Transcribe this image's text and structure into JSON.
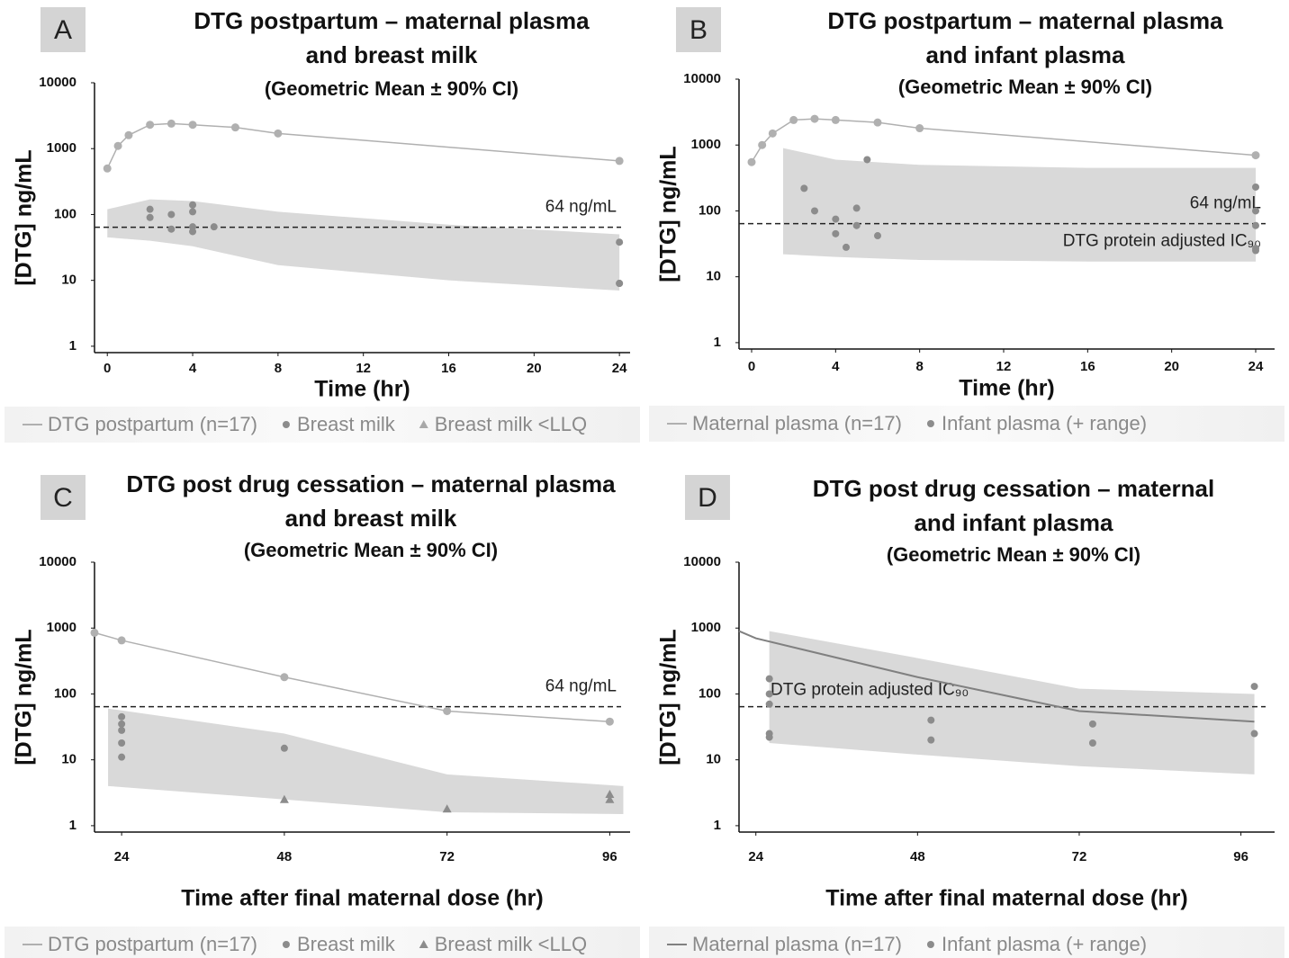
{
  "chart_data": [
    {
      "type": "line",
      "panel": "A",
      "title": [
        "DTG postpartum – maternal plasma",
        "and breast milk"
      ],
      "subtitle": "(Geometric Mean ± 90% CI)",
      "xlabel": "Time (hr)",
      "ylabel": "[DTG] ng/mL",
      "log_scale": true,
      "xlim": [
        -0.6,
        24.5
      ],
      "xticks": [
        0,
        4,
        8,
        12,
        16,
        20,
        24
      ],
      "ylim": [
        0.8,
        10000
      ],
      "yticks": [
        1,
        10,
        100,
        1000,
        10000
      ],
      "reference_line": {
        "value": 64,
        "labels": [
          "64 ng/mL"
        ]
      },
      "band": {
        "color": "#d9d9d9",
        "x": [
          0,
          2,
          4,
          8,
          16,
          24
        ],
        "lower": [
          45,
          40,
          33,
          17,
          10,
          7
        ],
        "upper": [
          120,
          170,
          160,
          110,
          70,
          50
        ]
      },
      "series": [
        {
          "name": "DTG postpartum (n=17)",
          "color": "#b0b0b0",
          "marker": "circle",
          "x": [
            0,
            0.5,
            1,
            2,
            3,
            4,
            6,
            8,
            24
          ],
          "values": [
            500,
            1100,
            1600,
            2300,
            2400,
            2300,
            2100,
            1700,
            650
          ]
        },
        {
          "name": "Breast milk",
          "color": "#8c8c8c",
          "marker": "dot",
          "x": [
            2,
            2,
            3,
            3,
            4,
            4,
            4,
            4,
            5,
            24,
            24,
            24
          ],
          "values": [
            90,
            120,
            60,
            100,
            140,
            110,
            65,
            55,
            65,
            38,
            9,
            9
          ]
        },
        {
          "name": "Breast milk <LLQ",
          "color": "#a8a8a8",
          "marker": "triangle",
          "x": [],
          "values": []
        }
      ]
    },
    {
      "type": "line",
      "panel": "B",
      "title": [
        "DTG postpartum – maternal plasma",
        "and infant plasma"
      ],
      "subtitle": "(Geometric Mean ± 90% CI)",
      "xlabel": "Time (hr)",
      "ylabel": "[DTG] ng/mL",
      "log_scale": true,
      "xlim": [
        -0.6,
        24.9
      ],
      "xticks": [
        0,
        4,
        8,
        12,
        16,
        20,
        24
      ],
      "ylim": [
        0.8,
        10000
      ],
      "yticks": [
        1,
        10,
        100,
        1000,
        10000
      ],
      "reference_line": {
        "value": 64,
        "labels": [
          "64 ng/mL",
          "DTG protein adjusted IC₉₀"
        ]
      },
      "band": {
        "color": "#d9d9d9",
        "x": [
          1.5,
          4,
          8,
          16,
          24
        ],
        "lower": [
          22,
          20,
          18,
          17,
          17
        ],
        "upper": [
          900,
          600,
          500,
          450,
          450
        ]
      },
      "series": [
        {
          "name": "Maternal plasma (n=17)",
          "color": "#b0b0b0",
          "marker": "circle",
          "x": [
            0,
            0.5,
            1,
            2,
            3,
            4,
            6,
            8,
            24
          ],
          "values": [
            550,
            1000,
            1500,
            2400,
            2500,
            2400,
            2200,
            1800,
            700
          ]
        },
        {
          "name": "Infant plasma (+ range)",
          "color": "#8c8c8c",
          "marker": "dot",
          "x": [
            2.5,
            3,
            4,
            4,
            4.5,
            5,
            5,
            5.5,
            6,
            24,
            24,
            24,
            24,
            24
          ],
          "values": [
            220,
            100,
            75,
            45,
            28,
            60,
            110,
            600,
            42,
            230,
            100,
            60,
            25,
            27
          ]
        }
      ]
    },
    {
      "type": "line",
      "panel": "C",
      "title": [
        "DTG post drug cessation – maternal plasma",
        "and breast milk"
      ],
      "subtitle": "(Geometric Mean ± 90% CI)",
      "xlabel": "Time after final maternal dose (hr)",
      "ylabel": "[DTG] ng/mL",
      "log_scale": true,
      "xlim": [
        20,
        99
      ],
      "xticks": [
        24,
        48,
        72,
        96
      ],
      "ylim": [
        0.8,
        10000
      ],
      "yticks": [
        1,
        10,
        100,
        1000,
        10000
      ],
      "reference_line": {
        "value": 64,
        "labels": [
          "64 ng/mL"
        ]
      },
      "band": {
        "color": "#d9d9d9",
        "x": [
          22,
          48,
          72,
          98
        ],
        "lower": [
          4,
          2.5,
          1.6,
          1.5
        ],
        "upper": [
          60,
          25,
          6,
          4
        ]
      },
      "series": [
        {
          "name": "DTG postpartum (n=17)",
          "color": "#b0b0b0",
          "marker": "circle",
          "x": [
            20,
            24,
            48,
            72,
            96
          ],
          "values": [
            850,
            650,
            180,
            55,
            38
          ]
        },
        {
          "name": "Breast milk",
          "color": "#8c8c8c",
          "marker": "dot",
          "x": [
            24,
            24,
            24,
            24,
            24,
            48
          ],
          "values": [
            45,
            35,
            28,
            18,
            11,
            15
          ]
        },
        {
          "name": "Breast milk <LLQ",
          "color": "#8c8c8c",
          "marker": "triangle",
          "x": [
            48,
            72,
            96,
            96
          ],
          "values": [
            2.5,
            1.8,
            3,
            2.5
          ]
        }
      ]
    },
    {
      "type": "line",
      "panel": "D",
      "title": [
        "DTG post drug cessation – maternal",
        "and infant plasma"
      ],
      "subtitle": "(Geometric Mean ± 90% CI)",
      "xlabel": "Time after final maternal dose (hr)",
      "ylabel": "[DTG] ng/mL",
      "log_scale": true,
      "xlim": [
        21.5,
        101
      ],
      "xticks": [
        24,
        48,
        72,
        96
      ],
      "ylim": [
        0.8,
        10000
      ],
      "yticks": [
        1,
        10,
        100,
        1000,
        10000
      ],
      "reference_line": {
        "value": 64,
        "labels": [
          "DTG protein adjusted IC₉₀"
        ]
      },
      "band": {
        "color": "#d9d9d9",
        "x": [
          26,
          48,
          72,
          98
        ],
        "lower": [
          18,
          12,
          8,
          6
        ],
        "upper": [
          900,
          350,
          120,
          100
        ]
      },
      "series": [
        {
          "name": "Maternal plasma (n=17)",
          "color": "#808080",
          "marker": "none",
          "x": [
            21.5,
            24,
            48,
            72,
            98
          ],
          "values": [
            900,
            700,
            180,
            55,
            38
          ]
        },
        {
          "name": "Infant plasma (+ range)",
          "color": "#8c8c8c",
          "marker": "dot",
          "x": [
            26,
            26,
            26,
            26,
            26,
            50,
            50,
            74,
            74,
            98,
            98
          ],
          "values": [
            170,
            100,
            70,
            25,
            22,
            40,
            20,
            35,
            18,
            130,
            25
          ]
        }
      ]
    }
  ]
}
